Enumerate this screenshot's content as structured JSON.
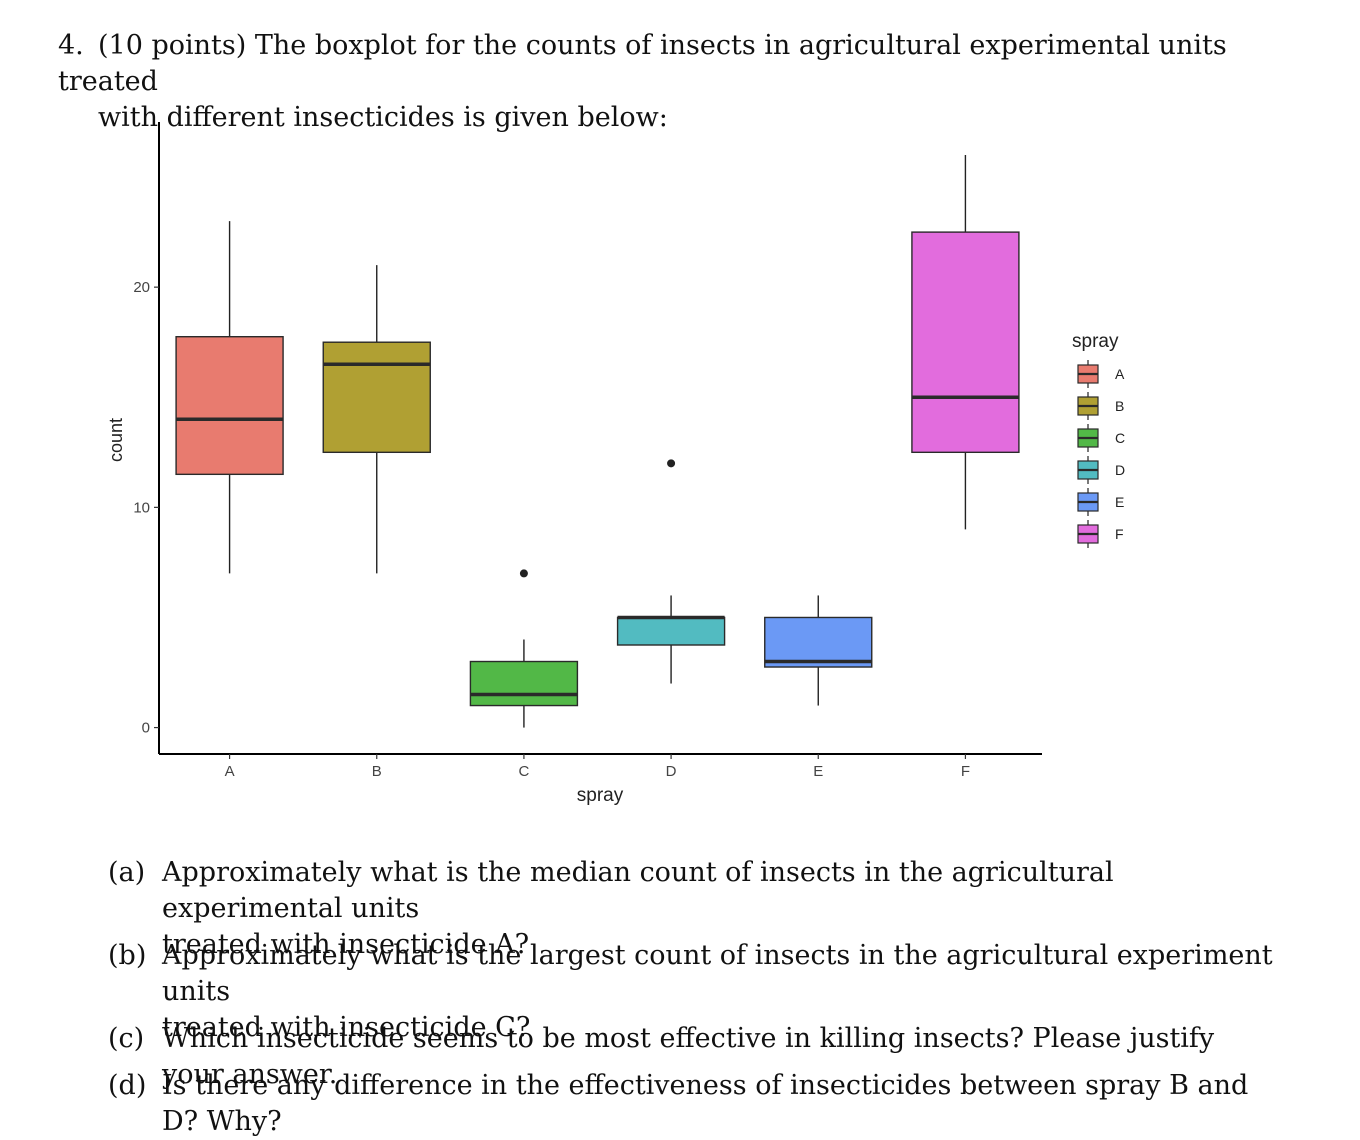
{
  "question": {
    "number": "4.",
    "line1": "(10 points) The boxplot for the counts of insects in agricultural experimental units treated",
    "line2": "with different insecticides is given below:"
  },
  "chart_data": {
    "type": "boxplot",
    "xlabel": "spray",
    "ylabel": "count",
    "yticks": [
      0,
      10,
      20
    ],
    "ylim": [
      -1.2,
      27.5
    ],
    "legend_title": "spray",
    "legend_position": "right",
    "grid": false,
    "categories": [
      "A",
      "B",
      "C",
      "D",
      "E",
      "F"
    ],
    "boxes": [
      {
        "name": "A",
        "color": "#E87B6F",
        "whisker_low": 7,
        "q1": 11.5,
        "median": 14,
        "q3": 17.75,
        "whisker_high": 23,
        "outliers": []
      },
      {
        "name": "B",
        "color": "#B0A033",
        "whisker_low": 7,
        "q1": 12.5,
        "median": 16.5,
        "q3": 17.5,
        "whisker_high": 21,
        "outliers": []
      },
      {
        "name": "C",
        "color": "#52B847",
        "whisker_low": 0,
        "q1": 1,
        "median": 1.5,
        "q3": 3,
        "whisker_high": 4,
        "outliers": [
          7
        ]
      },
      {
        "name": "D",
        "color": "#52BBC1",
        "whisker_low": 2,
        "q1": 3.75,
        "median": 5,
        "q3": 5,
        "whisker_high": 6,
        "outliers": [
          12
        ]
      },
      {
        "name": "E",
        "color": "#6B99F5",
        "whisker_low": 1,
        "q1": 2.75,
        "median": 3,
        "q3": 5,
        "whisker_high": 6,
        "outliers": []
      },
      {
        "name": "F",
        "color": "#E26CDD",
        "whisker_low": 9,
        "q1": 12.5,
        "median": 15,
        "q3": 22.5,
        "whisker_high": 26,
        "outliers": []
      }
    ]
  },
  "subquestions": [
    {
      "label": "(a)",
      "lines": [
        "Approximately what is the median count of insects in the agricultural experimental units",
        "treated with insecticide A?"
      ]
    },
    {
      "label": "(b)",
      "lines": [
        "Approximately what is the largest count of insects in the agricultural experiment units",
        "treated with insecticide C?"
      ]
    },
    {
      "label": "(c)",
      "lines": [
        "Which insecticide seems to be most effective in killing insects? Please justify your answer."
      ]
    },
    {
      "label": "(d)",
      "lines": [
        "Is there any difference in the effectiveness of insecticides between spray B and D? Why?"
      ]
    }
  ]
}
